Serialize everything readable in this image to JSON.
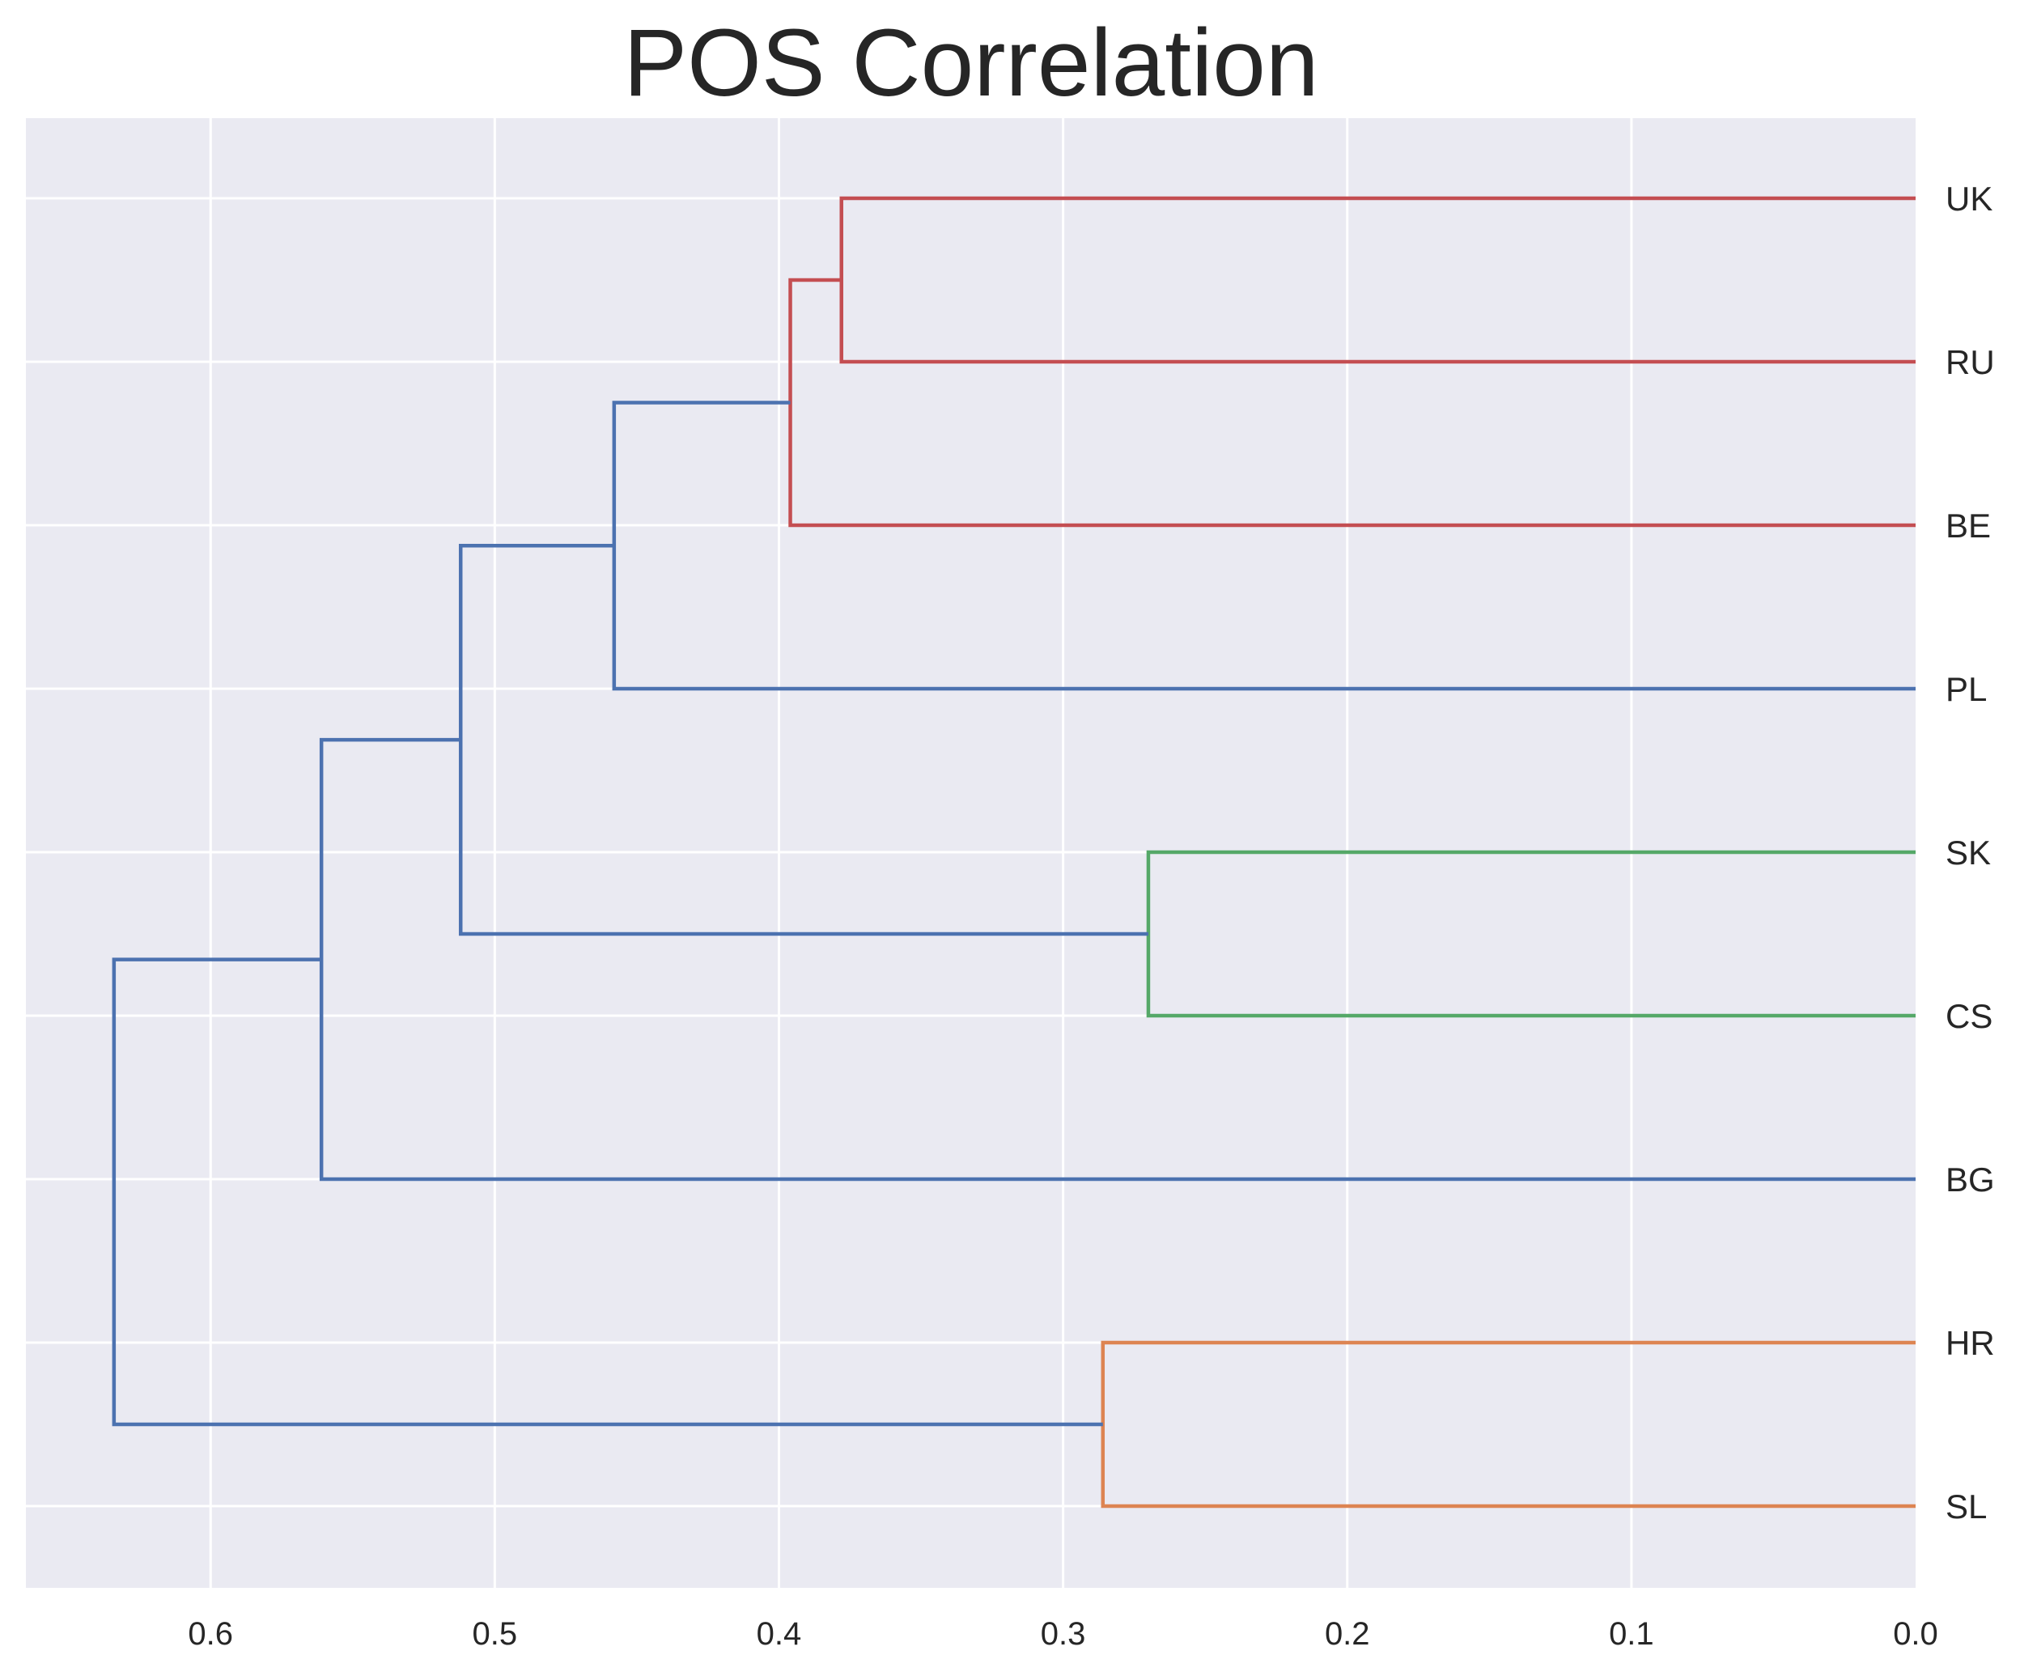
{
  "chart_data": {
    "type": "dendrogram",
    "title": "POS Correlation",
    "orientation": "left",
    "xlabel": "",
    "ylabel": "",
    "xlim": [
      0.665,
      0.0
    ],
    "x_ticks": [
      0.6,
      0.5,
      0.4,
      0.3,
      0.2,
      0.1,
      0.0
    ],
    "x_tick_labels": [
      "0.6",
      "0.5",
      "0.4",
      "0.3",
      "0.2",
      "0.1",
      "0.0"
    ],
    "leaves": [
      "UK",
      "RU",
      "BE",
      "PL",
      "SK",
      "CS",
      "BG",
      "HR",
      "SL"
    ],
    "grid": true,
    "background": "#eaeaf2",
    "colors": {
      "red": "#c44e52",
      "blue": "#4c72b0",
      "green": "#55a868",
      "orange": "#dd8452"
    },
    "merges": [
      {
        "id": "m1",
        "left": "UK",
        "right": "RU",
        "height": 0.378,
        "color": "red"
      },
      {
        "id": "m2",
        "left": "m1",
        "right": "BE",
        "height": 0.396,
        "color": "red"
      },
      {
        "id": "m3",
        "left": "m2",
        "right": "PL",
        "height": 0.458,
        "color": "blue"
      },
      {
        "id": "m4",
        "left": "SK",
        "right": "CS",
        "height": 0.27,
        "color": "green"
      },
      {
        "id": "m5",
        "left": "m3",
        "right": "m4",
        "height": 0.512,
        "color": "blue"
      },
      {
        "id": "m6",
        "left": "m5",
        "right": "BG",
        "height": 0.561,
        "color": "blue"
      },
      {
        "id": "m7",
        "left": "HR",
        "right": "SL",
        "height": 0.286,
        "color": "orange"
      },
      {
        "id": "m8",
        "left": "m6",
        "right": "m7",
        "height": 0.634,
        "color": "blue"
      }
    ]
  }
}
